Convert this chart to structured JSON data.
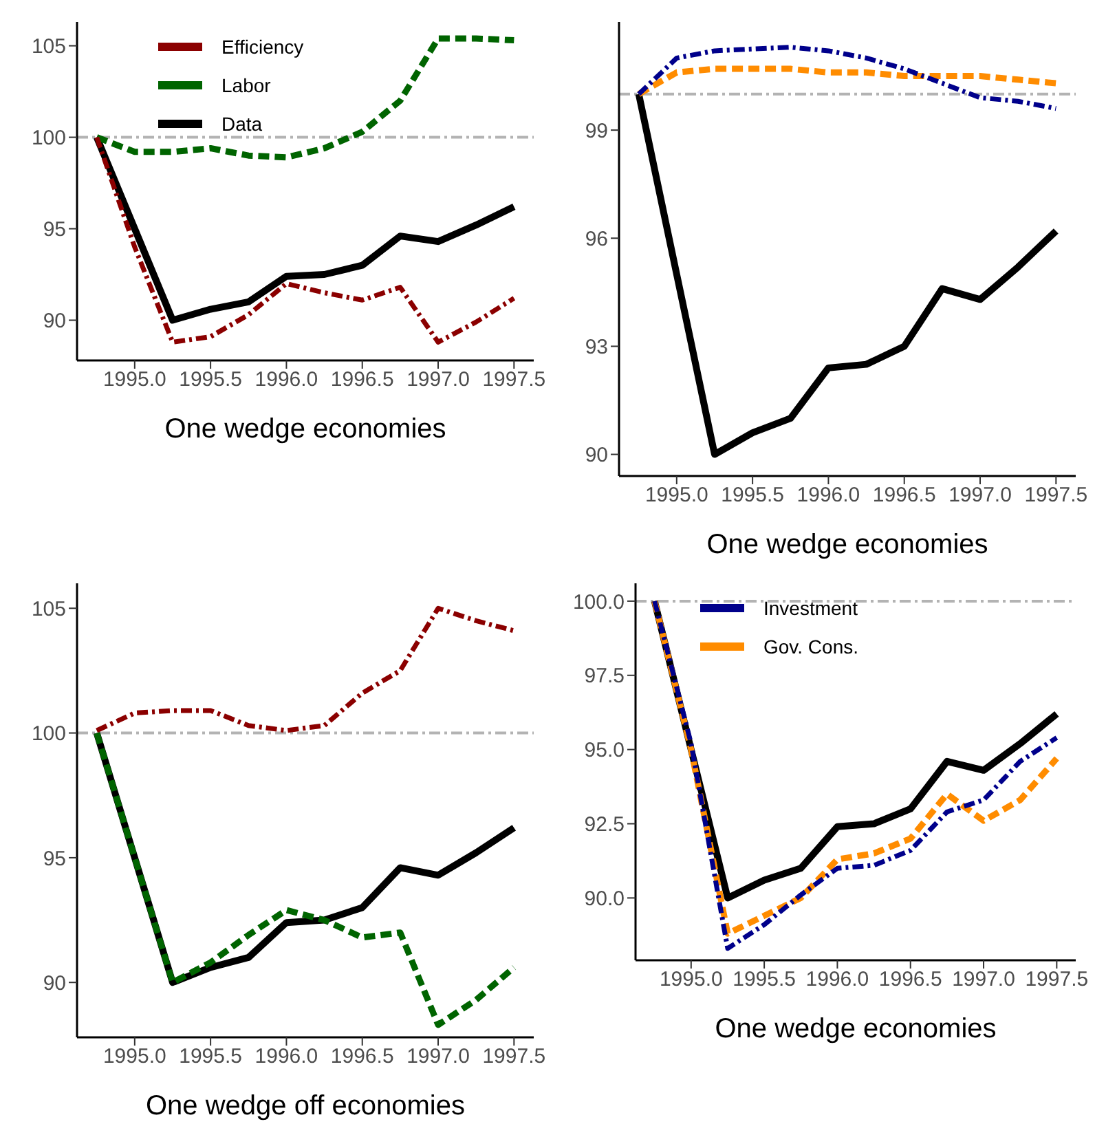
{
  "chart_data": [
    {
      "type": "line",
      "xlabel": "One wedge economies",
      "x": [
        1994.75,
        1995,
        1995.25,
        1995.5,
        1995.75,
        1996,
        1996.25,
        1996.5,
        1996.75,
        1997,
        1997.25,
        1997.5
      ],
      "xlim": [
        1994.62,
        1997.63
      ],
      "xticks": [
        {
          "value": 1995,
          "label": "1995.0"
        },
        {
          "value": 1995.5,
          "label": "1995.5"
        },
        {
          "value": 1996,
          "label": "1996.0"
        },
        {
          "value": 1996.5,
          "label": "1996.5"
        },
        {
          "value": 1997,
          "label": "1997.0"
        },
        {
          "value": 1997.5,
          "label": "1997.5"
        }
      ],
      "ylim": [
        87.8,
        106.3
      ],
      "yticks": [
        90,
        95,
        100,
        105
      ],
      "grid": false,
      "legend": "top left",
      "ref_lines": [
        {
          "axis": "y",
          "value": 100,
          "color": "#b3b3b3",
          "line_style": "dashdot"
        }
      ],
      "series": [
        {
          "name": "Efficiency",
          "color": "#8b0000",
          "line_style": "dashdot",
          "values": [
            100,
            94,
            88.8,
            89.1,
            90.3,
            92,
            91.5,
            91.1,
            91.8,
            88.8,
            89.9,
            91.2
          ]
        },
        {
          "name": "Labor",
          "color": "#006400",
          "line_style": "dashed",
          "values": [
            100,
            99.2,
            99.2,
            99.4,
            99,
            98.9,
            99.4,
            100.3,
            102,
            105.4,
            105.4,
            105.3
          ]
        },
        {
          "name": "Data",
          "color": "#000000",
          "line_style": "solid",
          "values": [
            100,
            95,
            90,
            90.6,
            91,
            92.4,
            92.5,
            93,
            94.6,
            94.3,
            95.2,
            96.2
          ]
        }
      ]
    },
    {
      "type": "line",
      "xlabel": "One wedge economies",
      "x": [
        1994.75,
        1995,
        1995.25,
        1995.5,
        1995.75,
        1996,
        1996.25,
        1996.5,
        1996.75,
        1997,
        1997.25,
        1997.5
      ],
      "xlim": [
        1994.62,
        1997.63
      ],
      "xticks": [
        {
          "value": 1995,
          "label": "1995.0"
        },
        {
          "value": 1995.5,
          "label": "1995.5"
        },
        {
          "value": 1996,
          "label": "1996.0"
        },
        {
          "value": 1996.5,
          "label": "1996.5"
        },
        {
          "value": 1997,
          "label": "1997.0"
        },
        {
          "value": 1997.5,
          "label": "1997.5"
        }
      ],
      "ylim": [
        89.4,
        102
      ],
      "yticks": [
        90,
        93,
        96,
        99
      ],
      "grid": false,
      "legend": false,
      "ref_lines": [
        {
          "axis": "y",
          "value": 100,
          "color": "#b3b3b3",
          "line_style": "dashdot"
        }
      ],
      "series": [
        {
          "color": "#00008b",
          "line_style": "dashdot",
          "values": [
            100,
            101,
            101.2,
            101.25,
            101.3,
            101.2,
            101,
            100.7,
            100.3,
            99.9,
            99.8,
            99.6
          ]
        },
        {
          "color": "#ff8c00",
          "line_style": "dashed",
          "values": [
            100,
            100.6,
            100.7,
            100.7,
            100.7,
            100.6,
            100.6,
            100.5,
            100.5,
            100.5,
            100.4,
            100.3
          ]
        },
        {
          "color": "#000000",
          "line_style": "solid",
          "values": [
            100,
            95,
            90,
            90.6,
            91,
            92.4,
            92.5,
            93,
            94.6,
            94.3,
            95.2,
            96.2
          ]
        }
      ]
    },
    {
      "type": "line",
      "xlabel": "One wedge off economies",
      "x": [
        1994.75,
        1995,
        1995.25,
        1995.5,
        1995.75,
        1996,
        1996.25,
        1996.5,
        1996.75,
        1997,
        1997.25,
        1997.5
      ],
      "xlim": [
        1994.62,
        1997.63
      ],
      "xticks": [
        {
          "value": 1995,
          "label": "1995.0"
        },
        {
          "value": 1995.5,
          "label": "1995.5"
        },
        {
          "value": 1996,
          "label": "1996.0"
        },
        {
          "value": 1996.5,
          "label": "1996.5"
        },
        {
          "value": 1997,
          "label": "1997.0"
        },
        {
          "value": 1997.5,
          "label": "1997.5"
        }
      ],
      "ylim": [
        87.8,
        106
      ],
      "yticks": [
        90,
        95,
        100,
        105
      ],
      "grid": false,
      "legend": false,
      "ref_lines": [
        {
          "axis": "y",
          "value": 100,
          "color": "#b3b3b3",
          "line_style": "dashdot"
        }
      ],
      "series": [
        {
          "color": "#8b0000",
          "line_style": "dashdot",
          "values": [
            100.1,
            100.8,
            100.9,
            100.9,
            100.3,
            100.1,
            100.3,
            101.6,
            102.5,
            105,
            104.5,
            104.1
          ]
        },
        {
          "color": "#006400",
          "line_style": "dashed",
          "values": [
            100,
            95,
            90,
            90.8,
            91.9,
            92.9,
            92.5,
            91.8,
            92,
            88.3,
            89.3,
            90.6
          ]
        },
        {
          "color": "#000000",
          "line_style": "solid",
          "values": [
            100,
            95,
            90,
            90.6,
            91,
            92.4,
            92.5,
            93,
            94.6,
            94.3,
            95.2,
            96.2
          ]
        }
      ]
    },
    {
      "type": "line",
      "xlabel": "One wedge economies",
      "x": [
        1994.75,
        1995,
        1995.25,
        1995.5,
        1995.75,
        1996,
        1996.25,
        1996.5,
        1996.75,
        1997,
        1997.25,
        1997.5
      ],
      "xlim": [
        1994.62,
        1997.63
      ],
      "xticks": [
        {
          "value": 1995,
          "label": "1995.0"
        },
        {
          "value": 1995.5,
          "label": "1995.5"
        },
        {
          "value": 1996,
          "label": "1996.0"
        },
        {
          "value": 1996.5,
          "label": "1996.5"
        },
        {
          "value": 1997,
          "label": "1997.0"
        },
        {
          "value": 1997.5,
          "label": "1997.5"
        }
      ],
      "ylim": [
        87.9,
        100.6
      ],
      "yticks": [
        {
          "value": 90,
          "label": "90.0"
        },
        {
          "value": 92.5,
          "label": "92.5"
        },
        {
          "value": 95,
          "label": "95.0"
        },
        {
          "value": 97.5,
          "label": "97.5"
        },
        {
          "value": 100,
          "label": "100.0"
        }
      ],
      "grid": false,
      "legend": "top left",
      "ref_lines": [
        {
          "axis": "y",
          "value": 100,
          "color": "#b3b3b3",
          "line_style": "dashdot"
        }
      ],
      "series": [
        {
          "name": "Investment",
          "color": "#00008b",
          "line_style": "dashdot",
          "values": [
            100,
            95.2,
            88.3,
            89.1,
            90.1,
            91,
            91.1,
            91.6,
            92.9,
            93.3,
            94.6,
            95.4
          ]
        },
        {
          "name": "Gov. Cons.",
          "color": "#ff8c00",
          "line_style": "dashed",
          "values": [
            100,
            95,
            88.8,
            89.4,
            90,
            91.3,
            91.5,
            92,
            93.5,
            92.6,
            93.3,
            94.7
          ]
        },
        {
          "color": "#000000",
          "line_style": "solid",
          "values": [
            100,
            95,
            90,
            90.6,
            91,
            92.4,
            92.5,
            93,
            94.6,
            94.3,
            95.2,
            96.2
          ]
        }
      ]
    }
  ]
}
